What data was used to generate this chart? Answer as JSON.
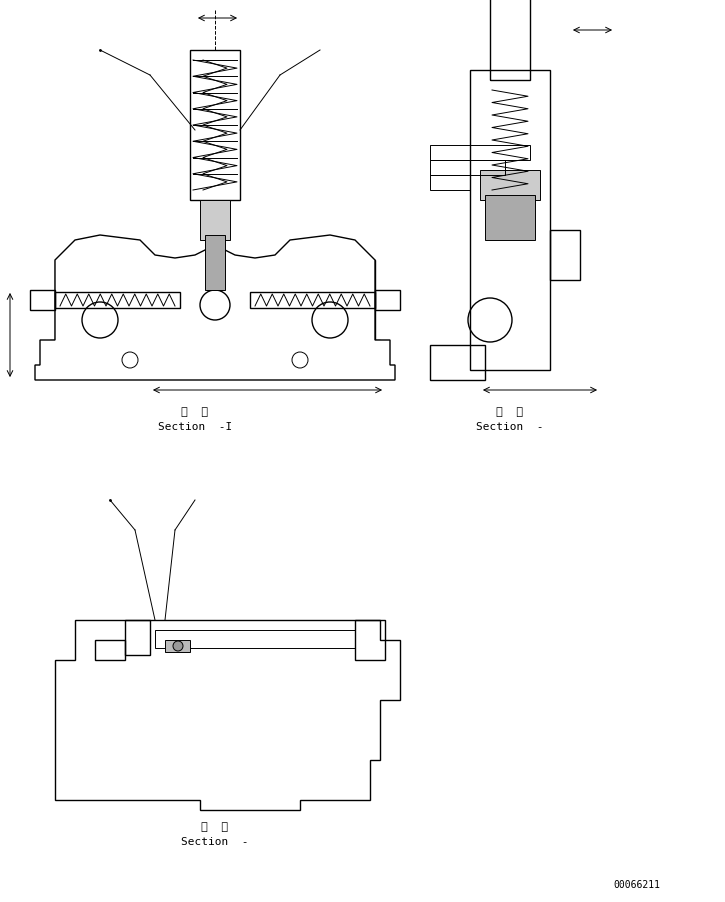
{
  "bg_color": "#ffffff",
  "line_color": "#000000",
  "fig_width": 7.25,
  "fig_height": 9.02,
  "dpi": 100,
  "label1_japanese": "断  面",
  "label1_english": "Section  -I",
  "label2_japanese": "断  面",
  "label2_english": "Section  -",
  "label3_japanese": "断  面",
  "label3_english": "Section  -",
  "part_number": "00066211"
}
